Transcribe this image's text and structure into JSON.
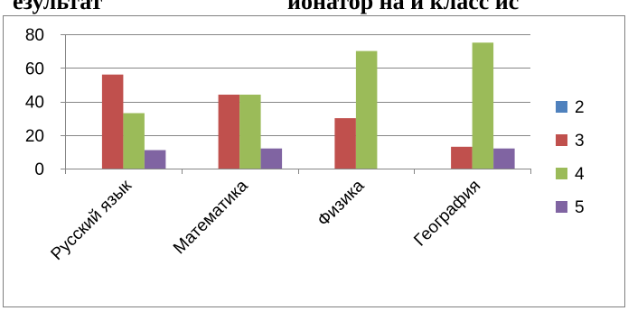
{
  "page_heading": {
    "left_text": "езультат",
    "right_text": "ионатор на    и класс  ис"
  },
  "chart_data": {
    "type": "bar",
    "title": "",
    "xlabel": "",
    "ylabel": "",
    "categories": [
      "Русский язык",
      "Математика",
      "Физика",
      "География"
    ],
    "ylim": [
      0,
      80
    ],
    "yticks": [
      0,
      20,
      40,
      60,
      80
    ],
    "grid": true,
    "legend_position": "right",
    "series": [
      {
        "name": "2",
        "color": "#4F81BD",
        "values": [
          0,
          0,
          0,
          0
        ]
      },
      {
        "name": "3",
        "color": "#C0504D",
        "values": [
          56,
          44,
          30,
          13
        ]
      },
      {
        "name": "4",
        "color": "#9BBB59",
        "values": [
          33,
          44,
          70,
          75
        ]
      },
      {
        "name": "5",
        "color": "#8064A2",
        "values": [
          11,
          12,
          0,
          12
        ]
      }
    ]
  }
}
